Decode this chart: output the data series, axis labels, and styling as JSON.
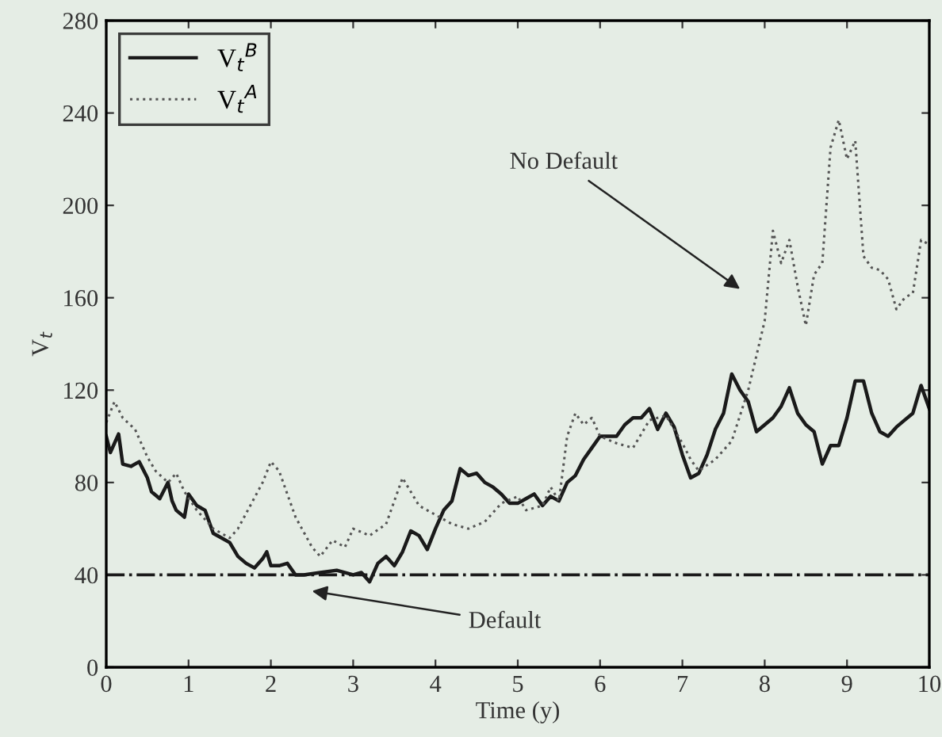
{
  "chart_data": {
    "type": "line",
    "xlabel": "Time (y)",
    "ylabel": "V$_{t}$",
    "xlim": [
      0,
      10
    ],
    "xticks": [
      0,
      1,
      2,
      3,
      4,
      5,
      6,
      7,
      8,
      9,
      10
    ],
    "ylim": [
      0,
      280
    ],
    "yticks": [
      0,
      40,
      80,
      120,
      160,
      200,
      240,
      280
    ],
    "grid": false,
    "legend": "top left",
    "marker": "none",
    "series": [
      {
        "name": "V$_{t}$$^{B}$",
        "color": "#1a1a1a",
        "line_style": "solid",
        "x": [
          0,
          0.05,
          0.15,
          0.2,
          0.3,
          0.4,
          0.5,
          0.55,
          0.65,
          0.75,
          0.8,
          0.85,
          0.95,
          1.0,
          1.1,
          1.2,
          1.3,
          1.4,
          1.5,
          1.6,
          1.7,
          1.8,
          1.9,
          1.95,
          2.0,
          2.1,
          2.2,
          2.3,
          2.4,
          2.6,
          2.8,
          3.0,
          3.1,
          3.2,
          3.3,
          3.4,
          3.5,
          3.6,
          3.7,
          3.8,
          3.9,
          4.0,
          4.1,
          4.2,
          4.3,
          4.4,
          4.5,
          4.6,
          4.7,
          4.8,
          4.9,
          5.0,
          5.1,
          5.2,
          5.3,
          5.4,
          5.5,
          5.6,
          5.7,
          5.8,
          5.9,
          6.0,
          6.2,
          6.3,
          6.4,
          6.5,
          6.6,
          6.7,
          6.8,
          6.9,
          7.0,
          7.1,
          7.2,
          7.3,
          7.4,
          7.5,
          7.6,
          7.7,
          7.8,
          7.9,
          8.0,
          8.1,
          8.2,
          8.3,
          8.4,
          8.5,
          8.6,
          8.7,
          8.8,
          8.9,
          9.0,
          9.1,
          9.2,
          9.3,
          9.4,
          9.5,
          9.6,
          9.7,
          9.8,
          9.9,
          10.0
        ],
        "values": [
          100,
          93,
          101,
          88,
          87,
          89,
          82,
          76,
          73,
          80,
          72,
          68,
          65,
          75,
          70,
          68,
          58,
          56,
          54,
          48,
          45,
          43,
          47,
          50,
          44,
          44,
          45,
          40,
          40,
          41,
          42,
          40,
          41,
          37,
          45,
          48,
          44,
          50,
          59,
          57,
          51,
          60,
          68,
          72,
          86,
          83,
          84,
          80,
          78,
          75,
          71,
          71,
          73,
          75,
          70,
          74,
          72,
          80,
          83,
          90,
          95,
          100,
          100,
          105,
          108,
          108,
          112,
          103,
          110,
          104,
          92,
          82,
          84,
          92,
          103,
          110,
          127,
          120,
          115,
          102,
          105,
          108,
          113,
          121,
          110,
          105,
          102,
          88,
          96,
          96,
          108,
          124,
          124,
          110,
          102,
          100,
          104,
          107,
          110,
          122,
          112
        ]
      },
      {
        "name": "V$_{t}$$^{A}$",
        "color": "#555555",
        "line_style": "dotted",
        "x": [
          0,
          0.1,
          0.2,
          0.35,
          0.5,
          0.6,
          0.75,
          0.85,
          0.95,
          1.1,
          1.3,
          1.5,
          1.6,
          1.75,
          1.9,
          2.0,
          2.1,
          2.3,
          2.5,
          2.6,
          2.75,
          2.9,
          3.0,
          3.2,
          3.4,
          3.6,
          3.8,
          4.0,
          4.2,
          4.4,
          4.6,
          4.8,
          5.0,
          5.1,
          5.3,
          5.4,
          5.5,
          5.6,
          5.7,
          5.8,
          5.9,
          6.0,
          6.2,
          6.4,
          6.6,
          6.8,
          7.0,
          7.1,
          7.2,
          7.4,
          7.6,
          7.8,
          8.0,
          8.1,
          8.2,
          8.3,
          8.4,
          8.5,
          8.6,
          8.7,
          8.8,
          8.9,
          9.0,
          9.1,
          9.2,
          9.3,
          9.4,
          9.5,
          9.6,
          9.7,
          9.8,
          9.9,
          10.0
        ],
        "values": [
          106,
          115,
          108,
          103,
          91,
          85,
          80,
          84,
          76,
          68,
          60,
          56,
          60,
          70,
          80,
          89,
          85,
          65,
          52,
          48,
          55,
          52,
          60,
          57,
          62,
          82,
          70,
          66,
          62,
          60,
          63,
          71,
          74,
          68,
          70,
          78,
          72,
          100,
          110,
          105,
          108,
          100,
          97,
          95,
          107,
          109,
          97,
          90,
          85,
          90,
          98,
          120,
          150,
          189,
          175,
          185,
          165,
          148,
          170,
          175,
          225,
          237,
          220,
          228,
          178,
          173,
          172,
          168,
          155,
          160,
          162,
          185,
          183
        ]
      }
    ],
    "ref_lines": [
      {
        "axis": "y",
        "value": 40,
        "color": "#1a1a1a",
        "line_style": "dashdot"
      }
    ],
    "annotations": [
      "Default",
      "No Default"
    ]
  }
}
